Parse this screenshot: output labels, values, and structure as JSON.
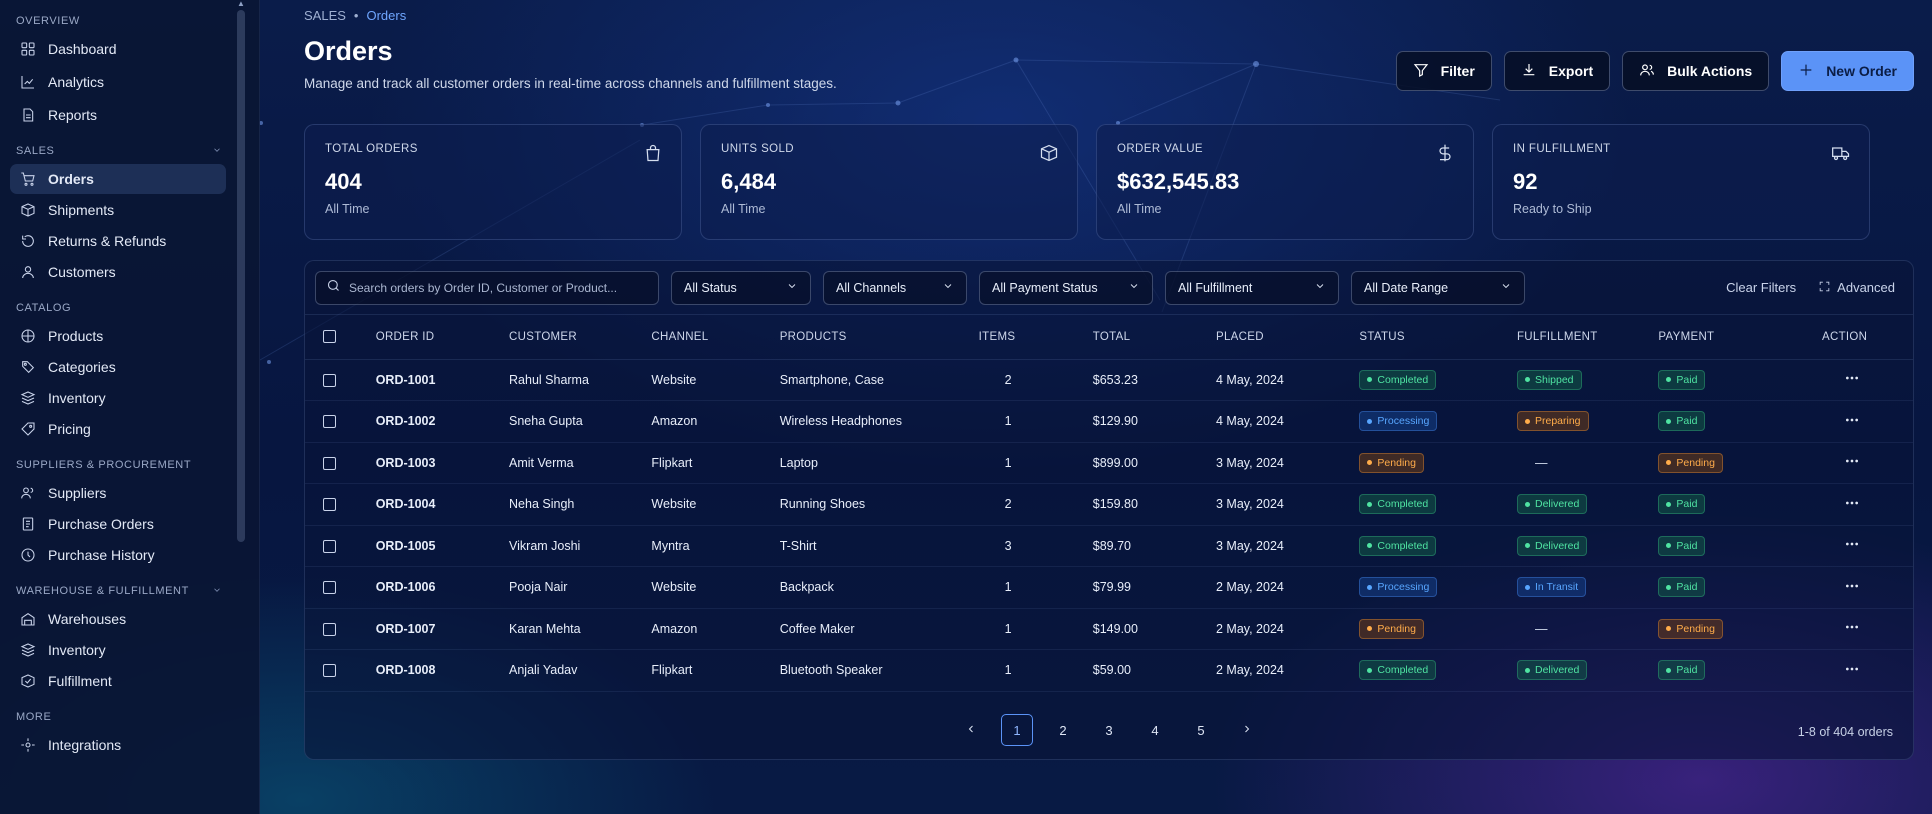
{
  "sidebar": {
    "sections": [
      {
        "title": "OVERVIEW",
        "items": [
          {
            "label": "Dashboard",
            "icon": "dashboard-icon"
          },
          {
            "label": "Analytics",
            "icon": "analytics-icon"
          },
          {
            "label": "Reports",
            "icon": "reports-icon"
          }
        ]
      },
      {
        "title": "SALES",
        "items": [
          {
            "label": "Orders",
            "icon": "cart-icon",
            "active": true
          },
          {
            "label": "Shipments",
            "icon": "shipments-icon"
          },
          {
            "label": "Returns & Refunds",
            "icon": "refund-icon"
          },
          {
            "label": "Customers",
            "icon": "customers-icon"
          }
        ]
      },
      {
        "title": "CATALOG",
        "items": [
          {
            "label": "Products",
            "icon": "products-icon"
          },
          {
            "label": "Categories",
            "icon": "categories-icon"
          },
          {
            "label": "Inventory",
            "icon": "inventory-icon"
          },
          {
            "label": "Pricing",
            "icon": "pricing-icon"
          }
        ]
      },
      {
        "title": "SUPPLIERS & PROCUREMENT",
        "items": [
          {
            "label": "Suppliers",
            "icon": "suppliers-icon"
          },
          {
            "label": "Purchase Orders",
            "icon": "purchase-orders-icon"
          },
          {
            "label": "Purchase History",
            "icon": "history-icon"
          }
        ]
      },
      {
        "title": "WAREHOUSE & FULFILLMENT",
        "items": [
          {
            "label": "Warehouses",
            "icon": "warehouse-icon"
          },
          {
            "label": "Inventory",
            "icon": "inventory-icon"
          },
          {
            "label": "Fulfillment",
            "icon": "fulfillment-icon"
          }
        ]
      },
      {
        "title": "MORE",
        "items": [
          {
            "label": "Integrations",
            "icon": "integrations-icon"
          }
        ]
      }
    ]
  },
  "header": {
    "breadcrumb_root": "SALES",
    "breadcrumb_current": "Orders",
    "title": "Orders",
    "subtitle": "Manage and track all customer orders in real-time across channels and fulfillment stages.",
    "filter_label": "Filter",
    "export_label": "Export",
    "bulk_label": "Bulk Actions",
    "new_label": "New Order"
  },
  "stats": [
    {
      "label": "TOTAL ORDERS",
      "value": "404",
      "sub": "All Time",
      "icon": "bag-icon"
    },
    {
      "label": "UNITS SOLD",
      "value": "6,484",
      "sub": "All Time",
      "icon": "box-icon"
    },
    {
      "label": "ORDER VALUE",
      "value": "$632,545.83",
      "sub": "All Time",
      "icon": "dollar-icon"
    },
    {
      "label": "IN FULFILLMENT",
      "value": "92",
      "sub": "Ready to Ship",
      "icon": "truck-icon"
    }
  ],
  "filters": {
    "search_placeholder": "Search orders by Order ID, Customer or Product...",
    "status": "All Status",
    "channels": "All Channels",
    "payment": "All Payment Status",
    "fulfillment": "All Fulfillment",
    "date": "All Date Range",
    "clear": "Clear Filters",
    "advanced": "Advanced"
  },
  "table": {
    "columns": [
      "ORDER ID",
      "CUSTOMER",
      "CHANNEL",
      "PRODUCTS",
      "ITEMS",
      "TOTAL",
      "PLACED",
      "STATUS",
      "FULFILLMENT",
      "PAYMENT",
      "ACTION"
    ],
    "rows": [
      {
        "id": "ORD-1001",
        "customer": "Rahul Sharma",
        "channel": "Website",
        "products": "Smartphone, Case",
        "items": "2",
        "total": "$653.23",
        "placed": "4 May, 2024",
        "status": "Completed",
        "status_color": "green",
        "fulfillment": "Shipped",
        "fulfillment_color": "green",
        "payment": "Paid",
        "payment_color": "green"
      },
      {
        "id": "ORD-1002",
        "customer": "Sneha Gupta",
        "channel": "Amazon",
        "products": "Wireless Headphones",
        "items": "1",
        "total": "$129.90",
        "placed": "4 May, 2024",
        "status": "Processing",
        "status_color": "blue",
        "fulfillment": "Preparing",
        "fulfillment_color": "orange",
        "payment": "Paid",
        "payment_color": "green"
      },
      {
        "id": "ORD-1003",
        "customer": "Amit Verma",
        "channel": "Flipkart",
        "products": "Laptop",
        "items": "1",
        "total": "$899.00",
        "placed": "3 May, 2024",
        "status": "Pending",
        "status_color": "orange",
        "fulfillment": "—",
        "fulfillment_color": "none",
        "payment": "Pending",
        "payment_color": "orange"
      },
      {
        "id": "ORD-1004",
        "customer": "Neha Singh",
        "channel": "Website",
        "products": "Running Shoes",
        "items": "2",
        "total": "$159.80",
        "placed": "3 May, 2024",
        "status": "Completed",
        "status_color": "green",
        "fulfillment": "Delivered",
        "fulfillment_color": "green",
        "payment": "Paid",
        "payment_color": "green"
      },
      {
        "id": "ORD-1005",
        "customer": "Vikram Joshi",
        "channel": "Myntra",
        "products": "T-Shirt",
        "items": "3",
        "total": "$89.70",
        "placed": "3 May, 2024",
        "status": "Completed",
        "status_color": "green",
        "fulfillment": "Delivered",
        "fulfillment_color": "green",
        "payment": "Paid",
        "payment_color": "green"
      },
      {
        "id": "ORD-1006",
        "customer": "Pooja Nair",
        "channel": "Website",
        "products": "Backpack",
        "items": "1",
        "total": "$79.99",
        "placed": "2 May, 2024",
        "status": "Processing",
        "status_color": "blue",
        "fulfillment": "In Transit",
        "fulfillment_color": "blue",
        "payment": "Paid",
        "payment_color": "green"
      },
      {
        "id": "ORD-1007",
        "customer": "Karan Mehta",
        "channel": "Amazon",
        "products": "Coffee Maker",
        "items": "1",
        "total": "$149.00",
        "placed": "2 May, 2024",
        "status": "Pending",
        "status_color": "orange",
        "fulfillment": "—",
        "fulfillment_color": "none",
        "payment": "Pending",
        "payment_color": "orange"
      },
      {
        "id": "ORD-1008",
        "customer": "Anjali Yadav",
        "channel": "Flipkart",
        "products": "Bluetooth Speaker",
        "items": "1",
        "total": "$59.00",
        "placed": "2 May, 2024",
        "status": "Completed",
        "status_color": "green",
        "fulfillment": "Delivered",
        "fulfillment_color": "green",
        "payment": "Paid",
        "payment_color": "green"
      }
    ]
  },
  "pagination": {
    "pages": [
      "1",
      "2",
      "3",
      "4",
      "5"
    ],
    "current": "1",
    "range_text": "1-8 of 404 orders"
  }
}
